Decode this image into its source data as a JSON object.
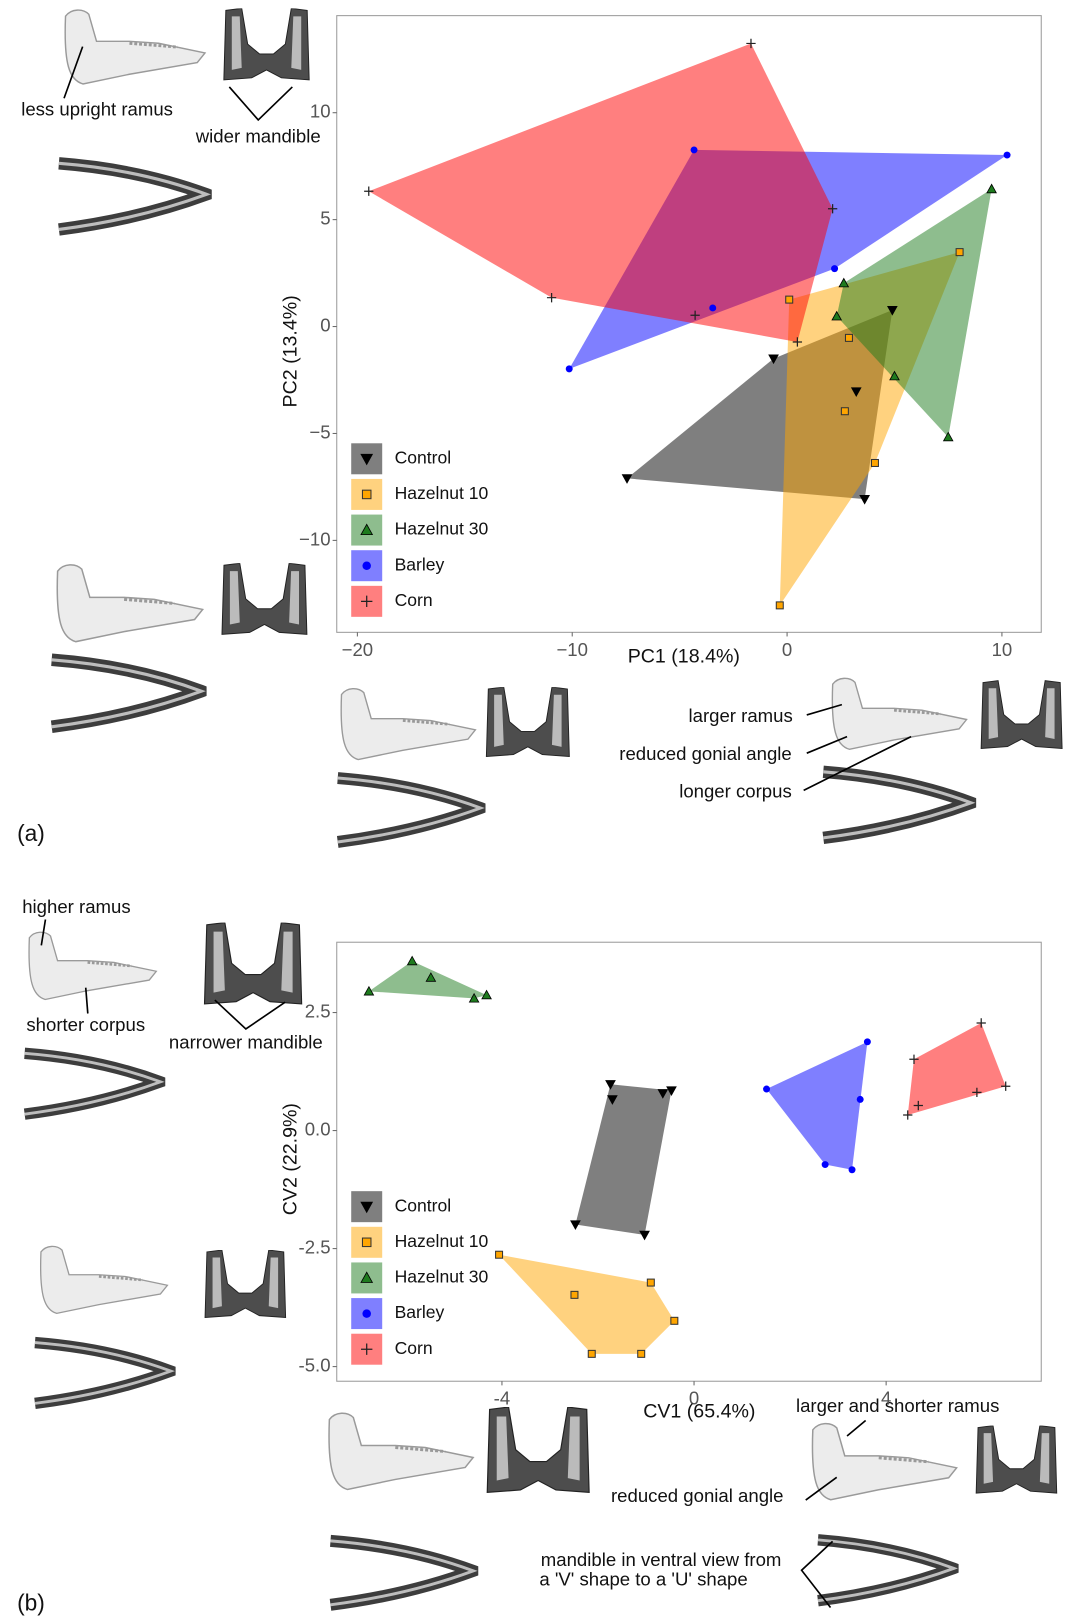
{
  "chart_data": [
    {
      "type": "scatter",
      "panel_label": "(a)",
      "xlabel": "PC1 (18.4%)",
      "ylabel": "PC2 (13.4%)",
      "xlim": [
        -20.96,
        11.83
      ],
      "ylim": [
        -14.3,
        14.54
      ],
      "xticks": [
        {
          "value": -20,
          "label": "−20"
        },
        {
          "value": -10,
          "label": "−10"
        },
        0,
        10
      ],
      "yticks": [
        {
          "value": -10,
          "label": "−10"
        },
        {
          "value": -5,
          "label": "−5"
        },
        0,
        5,
        10
      ],
      "legend": "lower left",
      "hulls": true,
      "series": [
        {
          "name": "Control",
          "color": "#000000",
          "marker": "down-triangle",
          "x": [
            4.9,
            -0.63,
            3.22,
            -7.45,
            3.61
          ],
          "y": [
            0.77,
            -1.5,
            -3.04,
            -7.1,
            -8.07
          ]
        },
        {
          "name": "Hazelnut 10",
          "color": "#ffa500",
          "marker": "square",
          "x": [
            8.03,
            0.1,
            2.88,
            2.69,
            4.09,
            -0.34
          ],
          "y": [
            3.48,
            1.26,
            -0.53,
            -3.96,
            -6.38,
            -13.04
          ]
        },
        {
          "name": "Hazelnut 30",
          "color": "#1e7b1e",
          "marker": "triangle",
          "x": [
            9.52,
            2.64,
            2.31,
            5.0,
            7.5
          ],
          "y": [
            6.43,
            2.03,
            0.48,
            -2.32,
            -5.17
          ]
        },
        {
          "name": "Barley",
          "color": "#0000ff",
          "marker": "circle",
          "x": [
            -4.33,
            10.24,
            2.21,
            -3.46,
            -10.14
          ],
          "y": [
            8.26,
            8.02,
            2.71,
            0.87,
            -1.98
          ]
        },
        {
          "name": "Corn",
          "color": "#ff0000",
          "marker": "plus",
          "x": [
            -1.68,
            -19.47,
            -10.96,
            -4.28,
            0.48,
            2.12
          ],
          "y": [
            13.24,
            6.33,
            1.35,
            0.53,
            -0.72,
            5.51
          ]
        }
      ],
      "annotations": [
        "less upright ramus",
        "wider mandible",
        "larger ramus",
        "reduced gonial angle",
        "longer corpus"
      ]
    },
    {
      "type": "scatter",
      "panel_label": "(b)",
      "xlabel": "CV1 (65.4%)",
      "ylabel": "CV2 (22.9%)",
      "xlim": [
        -7.44,
        7.23
      ],
      "ylim": [
        -5.31,
        3.99
      ],
      "xticks": [
        -4,
        0,
        4
      ],
      "yticks": [
        {
          "value": -5,
          "label": "-5.0"
        },
        -2.5,
        {
          "value": 0,
          "label": "0.0"
        },
        2.5
      ],
      "legend": "lower left",
      "hulls": true,
      "series": [
        {
          "name": "Control",
          "color": "#000000",
          "marker": "down-triangle",
          "x": [
            -1.74,
            -1.7,
            -0.65,
            -0.47,
            -2.47,
            -1.03
          ],
          "y": [
            0.98,
            0.66,
            0.79,
            0.85,
            -1.99,
            -2.21
          ]
        },
        {
          "name": "Hazelnut 10",
          "color": "#ffa500",
          "marker": "square",
          "x": [
            -4.06,
            -2.49,
            -0.9,
            -0.41,
            -2.13,
            -1.1
          ],
          "y": [
            -2.63,
            -3.48,
            -3.22,
            -4.03,
            -4.73,
            -4.73
          ]
        },
        {
          "name": "Hazelnut 30",
          "color": "#1e7b1e",
          "marker": "triangle",
          "x": [
            -6.77,
            -5.87,
            -5.48,
            -4.58,
            -4.32
          ],
          "y": [
            2.95,
            3.59,
            3.24,
            2.8,
            2.87
          ]
        },
        {
          "name": "Barley",
          "color": "#0000ff",
          "marker": "circle",
          "x": [
            3.61,
            1.51,
            3.46,
            2.73,
            3.29
          ],
          "y": [
            1.88,
            0.88,
            0.66,
            -0.72,
            -0.83
          ]
        },
        {
          "name": "Corn",
          "color": "#ff0000",
          "marker": "plus",
          "x": [
            5.98,
            4.58,
            6.49,
            5.89,
            4.67,
            4.45
          ],
          "y": [
            2.28,
            1.51,
            0.94,
            0.81,
            0.53,
            0.33
          ]
        }
      ],
      "annotations": [
        "higher ramus",
        "shorter corpus",
        "narrower mandible",
        "larger and shorter ramus",
        "reduced gonial angle",
        "mandible in ventral view from",
        "a 'V' shape to a 'U' shape"
      ]
    }
  ]
}
